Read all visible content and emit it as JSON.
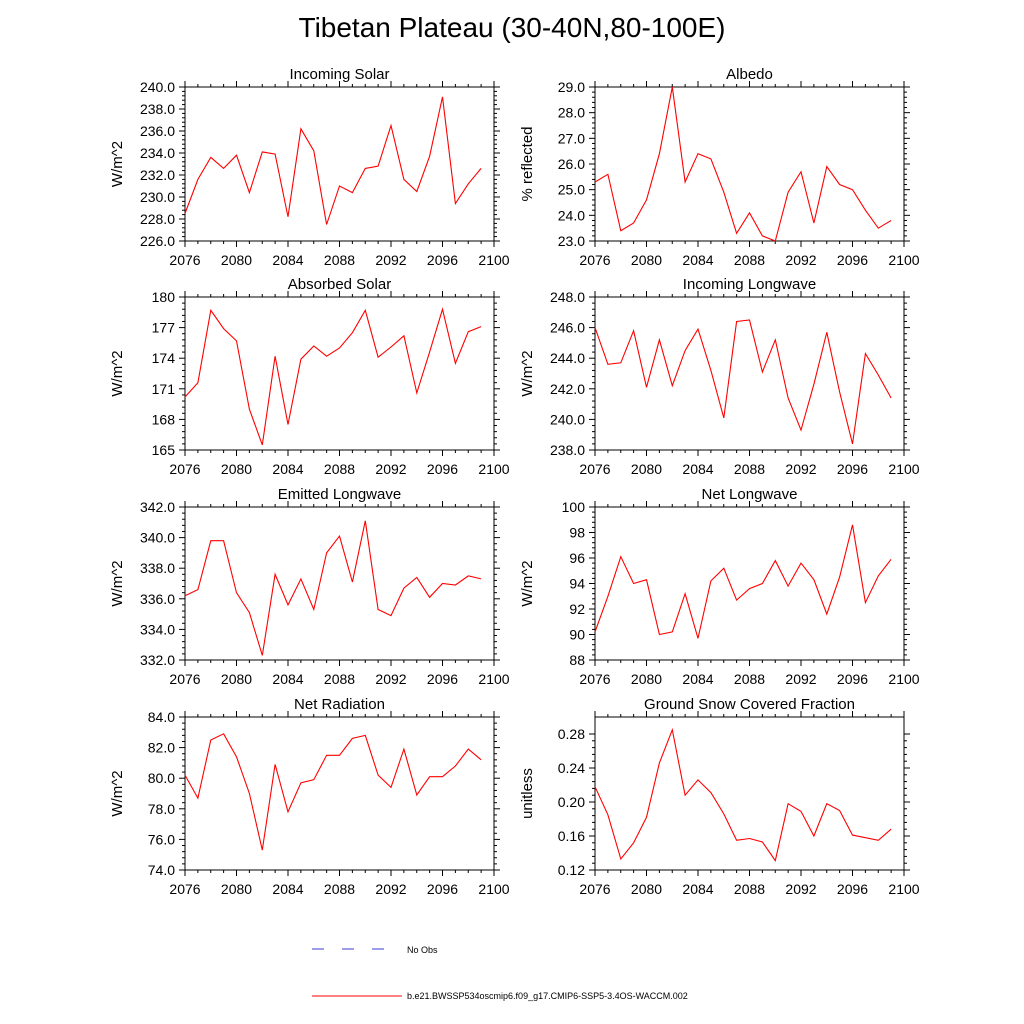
{
  "page_title": "Tibetan Plateau (30-40N,80-100E)",
  "colors": {
    "series_line": "#ff0000",
    "obs_line": "#3b3bd6",
    "frame": "#000000"
  },
  "legend": {
    "obs_label": "No Obs",
    "model_label": "b.e21.BWSSP534oscmip6.f09_g17.CMIP6-SSP5-3.4OS-WACCM.002"
  },
  "chart_data": [
    {
      "type": "line",
      "title": "Incoming Solar",
      "ylabel": "W/m^2",
      "x": [
        2076,
        2077,
        2078,
        2079,
        2080,
        2081,
        2082,
        2083,
        2084,
        2085,
        2086,
        2087,
        2088,
        2089,
        2090,
        2091,
        2092,
        2093,
        2094,
        2095,
        2096,
        2097,
        2098,
        2099
      ],
      "values": [
        228.5,
        231.6,
        233.6,
        232.6,
        233.8,
        230.4,
        234.1,
        233.9,
        228.2,
        236.2,
        234.2,
        227.5,
        231.0,
        230.4,
        232.6,
        232.8,
        236.5,
        231.6,
        230.5,
        233.7,
        239.1,
        229.4,
        231.2,
        232.6
      ],
      "xlim": [
        2076,
        2100
      ],
      "ylim": [
        226,
        240
      ],
      "xticks": [
        2076,
        2080,
        2084,
        2088,
        2092,
        2096,
        2100
      ],
      "yticks": [
        226,
        228,
        230,
        232,
        234,
        236,
        238,
        240
      ],
      "ytick_labels": [
        "226.0",
        "228.0",
        "230.0",
        "232.0",
        "234.0",
        "236.0",
        "238.0",
        "240.0"
      ]
    },
    {
      "type": "line",
      "title": "Albedo",
      "ylabel": "% reflected",
      "x": [
        2076,
        2077,
        2078,
        2079,
        2080,
        2081,
        2082,
        2083,
        2084,
        2085,
        2086,
        2087,
        2088,
        2089,
        2090,
        2091,
        2092,
        2093,
        2094,
        2095,
        2096,
        2097,
        2098,
        2099
      ],
      "values": [
        25.3,
        25.6,
        23.4,
        23.7,
        24.6,
        26.4,
        29.0,
        25.3,
        26.4,
        26.2,
        24.9,
        23.3,
        24.1,
        23.2,
        23.0,
        24.9,
        25.7,
        23.7,
        25.9,
        25.2,
        25.0,
        24.2,
        23.5,
        23.8
      ],
      "xlim": [
        2076,
        2100
      ],
      "ylim": [
        23,
        29
      ],
      "xticks": [
        2076,
        2080,
        2084,
        2088,
        2092,
        2096,
        2100
      ],
      "yticks": [
        23,
        24,
        25,
        26,
        27,
        28,
        29
      ],
      "ytick_labels": [
        "23.0",
        "24.0",
        "25.0",
        "26.0",
        "27.0",
        "28.0",
        "29.0"
      ]
    },
    {
      "type": "line",
      "title": "Absorbed Solar",
      "ylabel": "W/m^2",
      "x": [
        2076,
        2077,
        2078,
        2079,
        2080,
        2081,
        2082,
        2083,
        2084,
        2085,
        2086,
        2087,
        2088,
        2089,
        2090,
        2091,
        2092,
        2093,
        2094,
        2095,
        2096,
        2097,
        2098,
        2099
      ],
      "values": [
        170.2,
        171.6,
        178.7,
        176.9,
        175.7,
        169.0,
        165.5,
        174.2,
        167.5,
        173.9,
        175.2,
        174.2,
        175.0,
        176.5,
        178.7,
        174.1,
        175.1,
        176.2,
        170.6,
        174.6,
        178.8,
        173.5,
        176.6,
        177.1
      ],
      "xlim": [
        2076,
        2100
      ],
      "ylim": [
        165,
        180
      ],
      "xticks": [
        2076,
        2080,
        2084,
        2088,
        2092,
        2096,
        2100
      ],
      "yticks": [
        165,
        168,
        171,
        174,
        177,
        180
      ],
      "ytick_labels": [
        "165",
        "168",
        "171",
        "174",
        "177",
        "180"
      ]
    },
    {
      "type": "line",
      "title": "Incoming Longwave",
      "ylabel": "W/m^2",
      "x": [
        2076,
        2077,
        2078,
        2079,
        2080,
        2081,
        2082,
        2083,
        2084,
        2085,
        2086,
        2087,
        2088,
        2089,
        2090,
        2091,
        2092,
        2093,
        2094,
        2095,
        2096,
        2097,
        2098,
        2099
      ],
      "values": [
        246.0,
        243.6,
        243.7,
        245.8,
        242.1,
        245.2,
        242.2,
        244.5,
        245.9,
        243.2,
        240.1,
        246.4,
        246.5,
        243.1,
        245.2,
        241.4,
        239.3,
        242.3,
        245.7,
        241.8,
        238.4,
        244.3,
        242.9,
        241.4
      ],
      "xlim": [
        2076,
        2100
      ],
      "ylim": [
        238,
        248
      ],
      "xticks": [
        2076,
        2080,
        2084,
        2088,
        2092,
        2096,
        2100
      ],
      "yticks": [
        238,
        240,
        242,
        244,
        246,
        248
      ],
      "ytick_labels": [
        "238.0",
        "240.0",
        "242.0",
        "244.0",
        "246.0",
        "248.0"
      ]
    },
    {
      "type": "line",
      "title": "Emitted Longwave",
      "ylabel": "W/m^2",
      "x": [
        2076,
        2077,
        2078,
        2079,
        2080,
        2081,
        2082,
        2083,
        2084,
        2085,
        2086,
        2087,
        2088,
        2089,
        2090,
        2091,
        2092,
        2093,
        2094,
        2095,
        2096,
        2097,
        2098,
        2099
      ],
      "values": [
        336.2,
        336.6,
        339.8,
        339.8,
        336.4,
        335.1,
        332.3,
        337.6,
        335.6,
        337.3,
        335.3,
        339.0,
        340.1,
        337.1,
        341.1,
        335.3,
        334.9,
        336.7,
        337.4,
        336.1,
        337.0,
        336.9,
        337.5,
        337.3
      ],
      "xlim": [
        2076,
        2100
      ],
      "ylim": [
        332,
        342
      ],
      "xticks": [
        2076,
        2080,
        2084,
        2088,
        2092,
        2096,
        2100
      ],
      "yticks": [
        332,
        334,
        336,
        338,
        340,
        342
      ],
      "ytick_labels": [
        "332.0",
        "334.0",
        "336.0",
        "338.0",
        "340.0",
        "342.0"
      ]
    },
    {
      "type": "line",
      "title": "Net Longwave",
      "ylabel": "W/m^2",
      "x": [
        2076,
        2077,
        2078,
        2079,
        2080,
        2081,
        2082,
        2083,
        2084,
        2085,
        2086,
        2087,
        2088,
        2089,
        2090,
        2091,
        2092,
        2093,
        2094,
        2095,
        2096,
        2097,
        2098,
        2099
      ],
      "values": [
        90.2,
        93.0,
        96.1,
        94.0,
        94.3,
        90.0,
        90.2,
        93.2,
        89.7,
        94.2,
        95.2,
        92.7,
        93.6,
        94.0,
        95.8,
        93.8,
        95.6,
        94.3,
        91.6,
        94.5,
        98.6,
        92.5,
        94.6,
        95.9
      ],
      "xlim": [
        2076,
        2100
      ],
      "ylim": [
        88,
        100
      ],
      "xticks": [
        2076,
        2080,
        2084,
        2088,
        2092,
        2096,
        2100
      ],
      "yticks": [
        88,
        90,
        92,
        94,
        96,
        98,
        100
      ],
      "ytick_labels": [
        "88",
        "90",
        "92",
        "94",
        "96",
        "98",
        "100"
      ]
    },
    {
      "type": "line",
      "title": "Net Radiation",
      "ylabel": "W/m^2",
      "x": [
        2076,
        2077,
        2078,
        2079,
        2080,
        2081,
        2082,
        2083,
        2084,
        2085,
        2086,
        2087,
        2088,
        2089,
        2090,
        2091,
        2092,
        2093,
        2094,
        2095,
        2096,
        2097,
        2098,
        2099
      ],
      "values": [
        80.2,
        78.7,
        82.5,
        82.9,
        81.4,
        79.0,
        75.3,
        80.9,
        77.8,
        79.7,
        79.9,
        81.5,
        81.5,
        82.6,
        82.8,
        80.2,
        79.4,
        81.9,
        78.9,
        80.1,
        80.1,
        80.8,
        81.9,
        81.2
      ],
      "xlim": [
        2076,
        2100
      ],
      "ylim": [
        74,
        84
      ],
      "xticks": [
        2076,
        2080,
        2084,
        2088,
        2092,
        2096,
        2100
      ],
      "yticks": [
        74,
        76,
        78,
        80,
        82,
        84
      ],
      "ytick_labels": [
        "74.0",
        "76.0",
        "78.0",
        "80.0",
        "82.0",
        "84.0"
      ]
    },
    {
      "type": "line",
      "title": "Ground Snow Covered Fraction",
      "ylabel": "unitless",
      "x": [
        2076,
        2077,
        2078,
        2079,
        2080,
        2081,
        2082,
        2083,
        2084,
        2085,
        2086,
        2087,
        2088,
        2089,
        2090,
        2091,
        2092,
        2093,
        2094,
        2095,
        2096,
        2097,
        2098,
        2099
      ],
      "values": [
        0.218,
        0.185,
        0.133,
        0.152,
        0.182,
        0.246,
        0.285,
        0.208,
        0.226,
        0.211,
        0.186,
        0.155,
        0.157,
        0.153,
        0.131,
        0.198,
        0.189,
        0.16,
        0.198,
        0.19,
        0.161,
        0.158,
        0.155,
        0.168
      ],
      "xlim": [
        2076,
        2100
      ],
      "ylim": [
        0.12,
        0.3
      ],
      "xticks": [
        2076,
        2080,
        2084,
        2088,
        2092,
        2096,
        2100
      ],
      "yticks": [
        0.12,
        0.16,
        0.2,
        0.24,
        0.28
      ],
      "ytick_labels": [
        "0.12",
        "0.16",
        "0.20",
        "0.24",
        "0.28"
      ]
    }
  ]
}
